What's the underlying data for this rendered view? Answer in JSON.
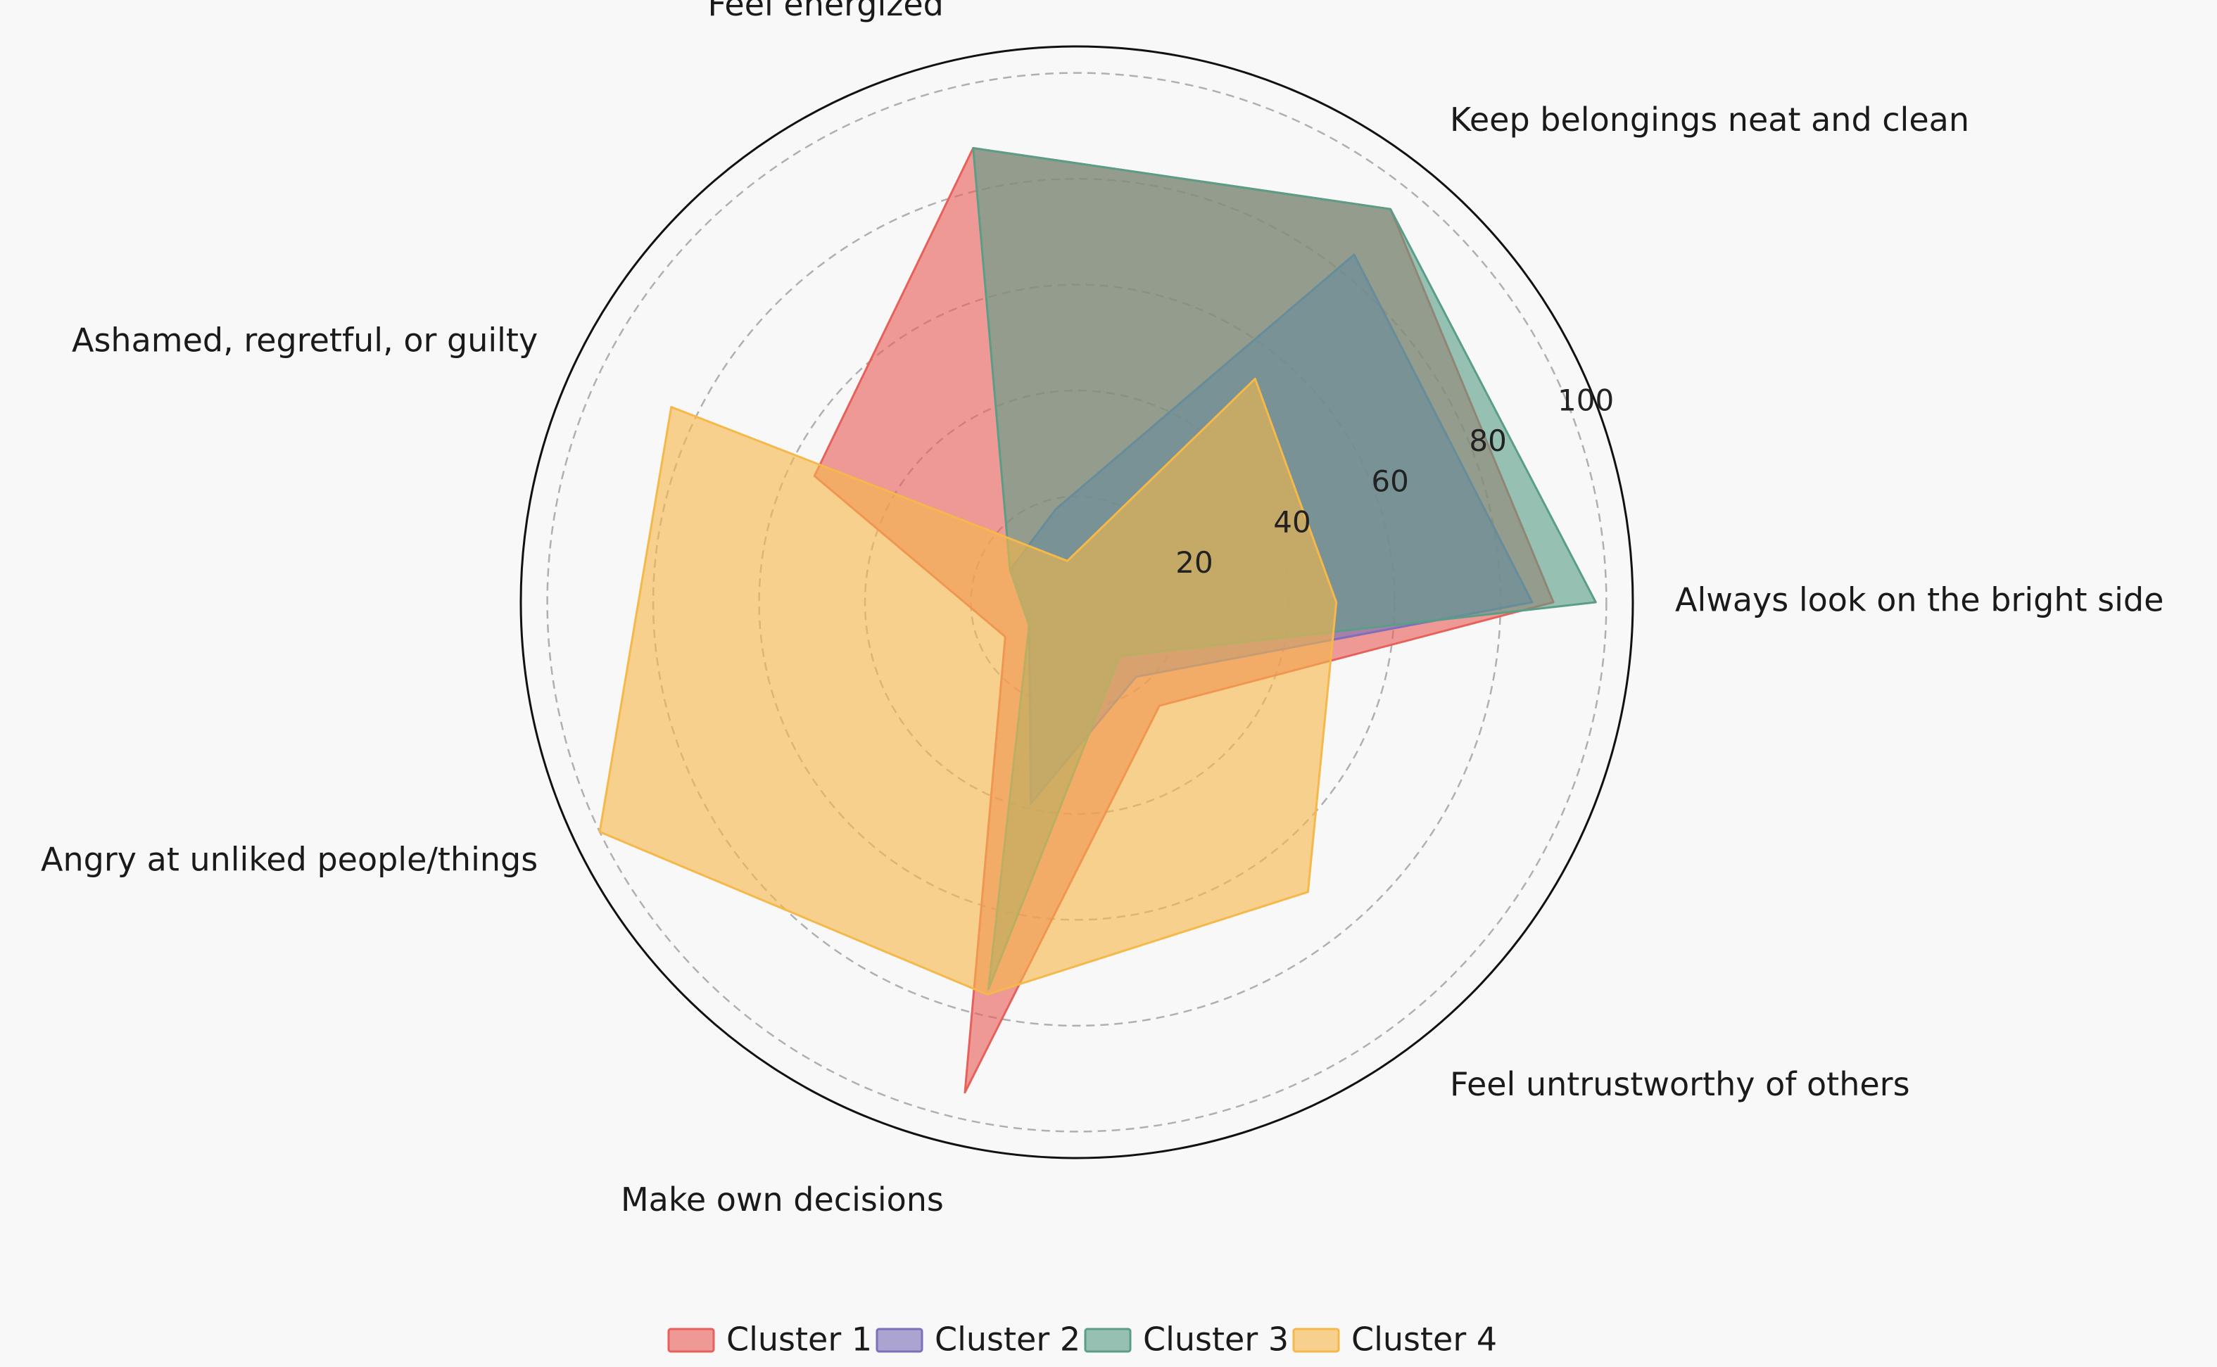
{
  "chart_data": {
    "type": "radar",
    "title": "",
    "axes": [
      "Always look on the bright side",
      "Keep belongings neat and clean",
      "Feel energized",
      "Ashamed, regretful, or guilty",
      "Angry at unliked people/things",
      "Make own decisions",
      "Feel untrustworthy of others"
    ],
    "rlim": [
      0,
      105
    ],
    "rticks": [
      20,
      40,
      60,
      80,
      100
    ],
    "grid": true,
    "legend_position": "bottom",
    "series": [
      {
        "name": "Cluster 1",
        "color": "#e8605a",
        "values": [
          90,
          95,
          88,
          55,
          15,
          95,
          25
        ]
      },
      {
        "name": "Cluster 2",
        "color": "#7d6fb8",
        "values": [
          86,
          84,
          18,
          14,
          10,
          39,
          18
        ]
      },
      {
        "name": "Cluster 3",
        "color": "#5a9e88",
        "values": [
          98,
          95,
          88,
          14,
          10,
          75,
          13
        ]
      },
      {
        "name": "Cluster 4",
        "color": "#f5b84a",
        "values": [
          49,
          54,
          8,
          85,
          100,
          76,
          70
        ]
      }
    ]
  }
}
